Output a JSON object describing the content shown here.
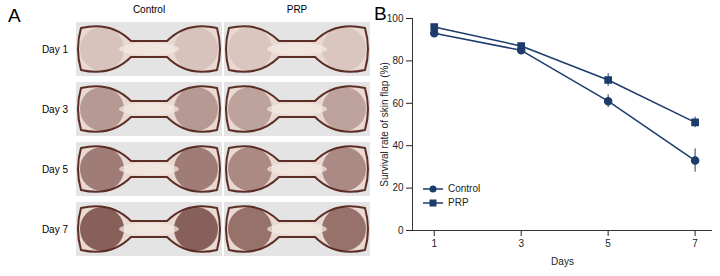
{
  "panel_labels": [
    "A",
    "B"
  ],
  "photo_grid": {
    "columns": [
      "Control",
      "PRP"
    ],
    "rows": [
      "Day 1",
      "Day 3",
      "Day 5",
      "Day 7"
    ]
  },
  "chart_data": {
    "type": "line",
    "x_label": "Days",
    "y_label": "Survival rate of skin flap (%)",
    "x": [
      1,
      3,
      5,
      7
    ],
    "xlim": [
      0.5,
      7.4
    ],
    "xticks": [
      1,
      3,
      5,
      7
    ],
    "ylim": [
      0,
      100
    ],
    "yticks": [
      0,
      20,
      40,
      60,
      80,
      100
    ],
    "grid": false,
    "legend": "lower left",
    "series": [
      {
        "name": "Control",
        "color": "#1d3b6b",
        "marker": "circle",
        "values": [
          93,
          85,
          61,
          33
        ],
        "errors": [
          1.5,
          1,
          3,
          5.5
        ]
      },
      {
        "name": "PRP",
        "color": "#1d3b6b",
        "marker": "square",
        "values": [
          96,
          87,
          71,
          51
        ],
        "errors": [
          1,
          1,
          3,
          2.5
        ]
      }
    ]
  }
}
